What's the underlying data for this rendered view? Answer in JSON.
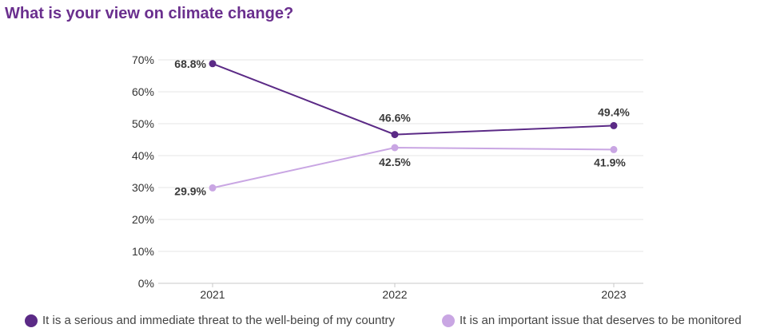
{
  "chart_data": {
    "type": "line",
    "title": "What is your view on climate change?",
    "categories": [
      "2021",
      "2022",
      "2023"
    ],
    "y_ticks": [
      "0%",
      "10%",
      "20%",
      "30%",
      "40%",
      "50%",
      "60%",
      "70%"
    ],
    "ylim": [
      0,
      70
    ],
    "grid": true,
    "legend_position": "bottom",
    "series": [
      {
        "name": "It is a serious and immediate threat to the well-being of my country",
        "values": [
          68.8,
          46.6,
          49.4
        ],
        "labels": [
          "68.8%",
          "46.6%",
          "49.4%"
        ],
        "color": "#5b2a86"
      },
      {
        "name": "It is an important issue that deserves to be monitored",
        "values": [
          29.9,
          42.5,
          41.9
        ],
        "labels": [
          "29.9%",
          "42.5%",
          "41.9%"
        ],
        "color": "#c9a6e3"
      }
    ]
  }
}
